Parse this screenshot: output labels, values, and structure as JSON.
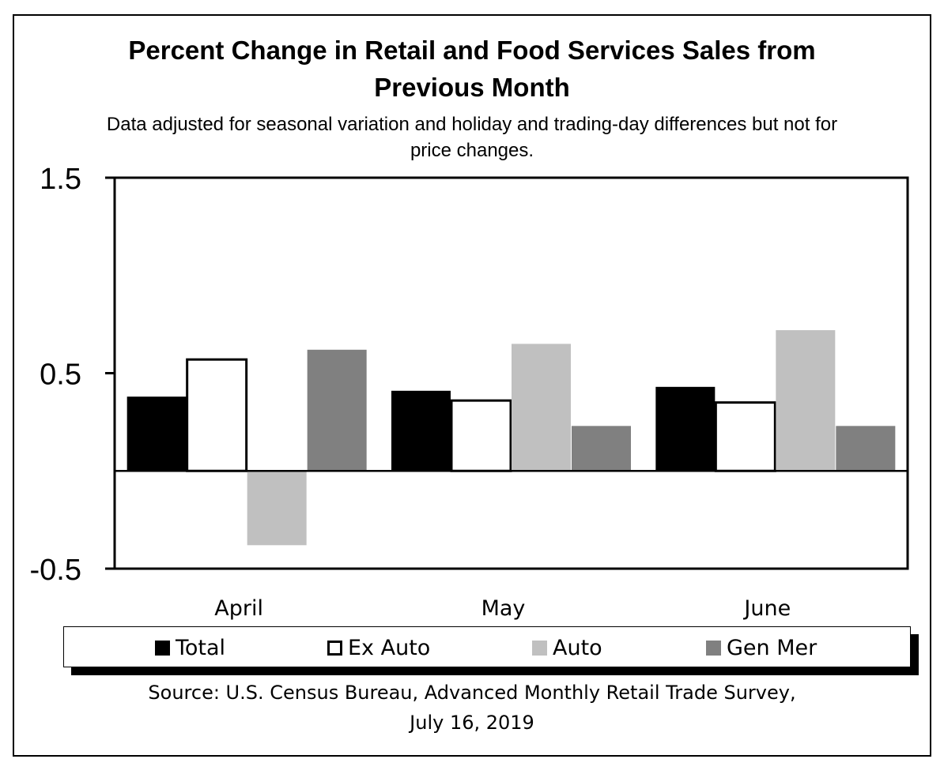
{
  "chart_data": {
    "type": "bar",
    "title_lines": [
      "Percent Change in Retail and Food Services Sales from",
      "Previous Month"
    ],
    "subtitle_lines": [
      "Data adjusted for seasonal variation and holiday and trading-day differences but not for",
      "price changes."
    ],
    "categories": [
      "April",
      "May",
      "June"
    ],
    "series": [
      {
        "name": "Total",
        "values": [
          0.38,
          0.41,
          0.43
        ],
        "color": "#000000",
        "outline": false
      },
      {
        "name": "Ex Auto",
        "values": [
          0.57,
          0.36,
          0.35
        ],
        "color": "#ffffff",
        "outline": true
      },
      {
        "name": "Auto",
        "values": [
          -0.38,
          0.65,
          0.72
        ],
        "color": "#c0c0c0",
        "outline": false
      },
      {
        "name": "Gen Mer",
        "values": [
          0.62,
          0.23,
          0.23
        ],
        "color": "#808080",
        "outline": false
      }
    ],
    "yticks": [
      "1.5",
      "0.5",
      "-0.5"
    ],
    "ytick_values": [
      1.5,
      0.5,
      -0.5
    ],
    "ylim": [
      -0.5,
      1.5
    ],
    "xlabel": "",
    "ylabel": "",
    "grid": false,
    "legend_position": "bottom",
    "source_lines": [
      "Source: U.S. Census Bureau, Advanced Monthly Retail Trade Survey,",
      "July 16, 2019"
    ]
  }
}
